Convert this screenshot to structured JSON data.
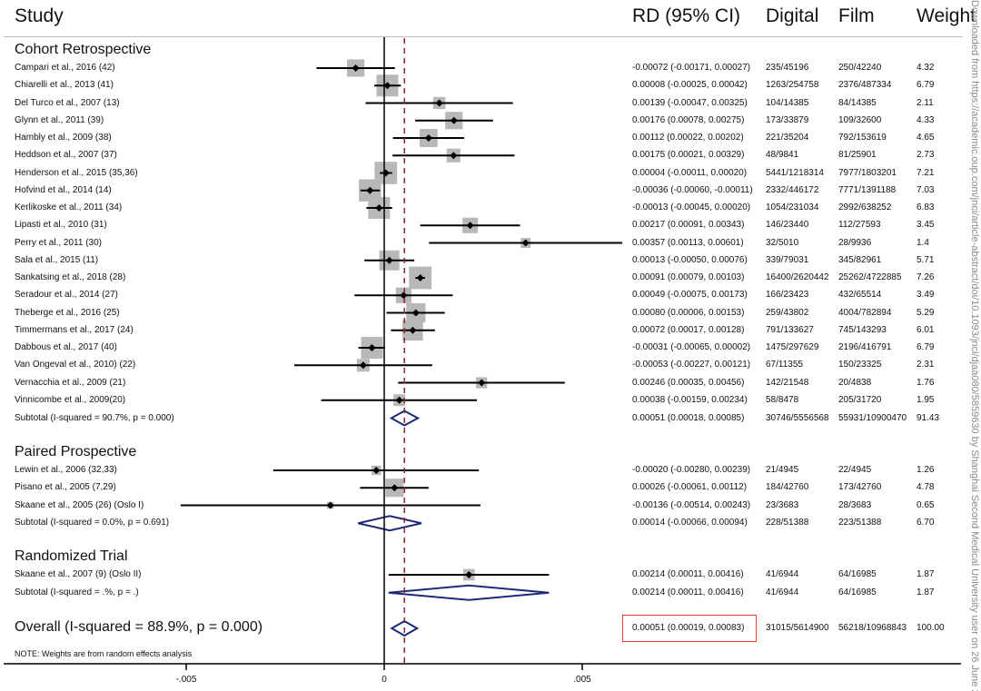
{
  "headers": {
    "study": "Study",
    "rd": "RD (95% CI)",
    "digital": "Digital",
    "film": "Film",
    "weight": "Weight"
  },
  "watermark": "Downloaded from https://academic.oup.com/jnci/article-abstract/doi/10.1093/jnci/djaa080/5859630 by Shanghai Second Medical University user on 26 June 2020",
  "note": "NOTE: Weights are from random effects analysis",
  "colors": {
    "box": "#b8b8b8",
    "diamond": "#1c2a7a",
    "null_line": "#000000",
    "overall_line": "#8b2a2a",
    "highlight": "#e2472b"
  },
  "chart_data": {
    "type": "forest",
    "title": "",
    "xlabel": "",
    "xlim": [
      -0.0051,
      0.0062
    ],
    "xticks": [
      -0.005,
      0,
      0.005
    ],
    "xtick_labels": [
      "-.005",
      "0",
      ".005"
    ],
    "null_value": 0,
    "overall_effect_line": 0.00051,
    "groups": [
      {
        "name": "Cohort Retrospective",
        "studies": [
          {
            "label": "Campari et al., 2016 (42)",
            "rd": -0.00072,
            "lo": -0.00171,
            "hi": 0.00027,
            "text": "-0.00072 (-0.00171, 0.00027)",
            "digital": "235/45196",
            "film": "250/42240",
            "weight": 4.32
          },
          {
            "label": "Chiarelli et al., 2013 (41)",
            "rd": 8e-05,
            "lo": -0.00025,
            "hi": 0.00042,
            "text": "0.00008 (-0.00025, 0.00042)",
            "digital": "1263/254758",
            "film": "2376/487334",
            "weight": 6.79
          },
          {
            "label": "Del Turco et al., 2007 (13)",
            "rd": 0.00139,
            "lo": -0.00047,
            "hi": 0.00325,
            "text": "0.00139 (-0.00047, 0.00325)",
            "digital": "104/14385",
            "film": "84/14385",
            "weight": 2.11
          },
          {
            "label": "Glynn et al., 2011 (39)",
            "rd": 0.00176,
            "lo": 0.00078,
            "hi": 0.00275,
            "text": "0.00176 (0.00078, 0.00275)",
            "digital": "173/33879",
            "film": "109/32600",
            "weight": 4.33
          },
          {
            "label": "Hambly et al., 2009 (38)",
            "rd": 0.00112,
            "lo": 0.00022,
            "hi": 0.00202,
            "text": "0.00112 (0.00022, 0.00202)",
            "digital": "221/35204",
            "film": "792/153619",
            "weight": 4.65
          },
          {
            "label": "Heddson et al., 2007 (37)",
            "rd": 0.00175,
            "lo": 0.00021,
            "hi": 0.00329,
            "text": "0.00175 (0.00021, 0.00329)",
            "digital": "48/9841",
            "film": "81/25901",
            "weight": 2.73
          },
          {
            "label": "Henderson et al., 2015 (35,36)",
            "rd": 4e-05,
            "lo": -0.00011,
            "hi": 0.0002,
            "text": "0.00004 (-0.00011, 0.00020)",
            "digital": "5441/1218314",
            "film": "7977/1803201",
            "weight": 7.21
          },
          {
            "label": "Hofvind et al., 2014 (14)",
            "rd": -0.00036,
            "lo": -0.0006,
            "hi": -0.00011,
            "text": "-0.00036 (-0.00060, -0.00011)",
            "digital": "2332/446172",
            "film": "7771/1391188",
            "weight": 7.03
          },
          {
            "label": "Kerlikoske et al., 2011 (34)",
            "rd": -0.00013,
            "lo": -0.00045,
            "hi": 0.0002,
            "text": "-0.00013 (-0.00045, 0.00020)",
            "digital": "1054/231034",
            "film": "2992/638252",
            "weight": 6.83
          },
          {
            "label": "Lipasti et al., 2010 (31)",
            "rd": 0.00217,
            "lo": 0.00091,
            "hi": 0.00343,
            "text": "0.00217 (0.00091, 0.00343)",
            "digital": "146/23440",
            "film": "112/27593",
            "weight": 3.45
          },
          {
            "label": "Perry et al., 2011 (30)",
            "rd": 0.00357,
            "lo": 0.00113,
            "hi": 0.00601,
            "text": "0.00357 (0.00113, 0.00601)",
            "digital": "32/5010",
            "film": "28/9936",
            "weight": 1.4
          },
          {
            "label": "Sala et al., 2015 (11)",
            "rd": 0.00013,
            "lo": -0.0005,
            "hi": 0.00076,
            "text": "0.00013 (-0.00050, 0.00076)",
            "digital": "339/79031",
            "film": "345/82961",
            "weight": 5.71
          },
          {
            "label": "Sankatsing et al., 2018 (28)",
            "rd": 0.00091,
            "lo": 0.00079,
            "hi": 0.00103,
            "text": "0.00091 (0.00079, 0.00103)",
            "digital": "16400/2620442",
            "film": "25262/4722885",
            "weight": 7.26
          },
          {
            "label": "Seradour et al., 2014 (27)",
            "rd": 0.00049,
            "lo": -0.00075,
            "hi": 0.00173,
            "text": "0.00049 (-0.00075, 0.00173)",
            "digital": "166/23423",
            "film": "432/65514",
            "weight": 3.49
          },
          {
            "label": "Theberge et al., 2016 (25)",
            "rd": 0.0008,
            "lo": 6e-05,
            "hi": 0.00153,
            "text": "0.00080 (0.00006, 0.00153)",
            "digital": "259/43802",
            "film": "4004/782894",
            "weight": 5.29
          },
          {
            "label": "Timmermans et al., 2017 (24)",
            "rd": 0.00072,
            "lo": 0.00017,
            "hi": 0.00128,
            "text": "0.00072 (0.00017, 0.00128)",
            "digital": "791/133627",
            "film": "745/143293",
            "weight": 6.01
          },
          {
            "label": "Dabbous et al., 2017 (40)",
            "rd": -0.00031,
            "lo": -0.00065,
            "hi": 2e-05,
            "text": "-0.00031 (-0.00065, 0.00002)",
            "digital": "1475/297629",
            "film": "2196/416791",
            "weight": 6.79
          },
          {
            "label": "Van Ongeval et al., 2010) (22)",
            "rd": -0.00053,
            "lo": -0.00227,
            "hi": 0.00121,
            "text": "-0.00053 (-0.00227, 0.00121)",
            "digital": "67/11355",
            "film": "150/23325",
            "weight": 2.31
          },
          {
            "label": "Vernacchia et al., 2009 (21)",
            "rd": 0.00246,
            "lo": 0.00035,
            "hi": 0.00456,
            "text": "0.00246 (0.00035, 0.00456)",
            "digital": "142/21548",
            "film": "20/4838",
            "weight": 1.76
          },
          {
            "label": "Vinnicombe et al., 2009(20)",
            "rd": 0.00038,
            "lo": -0.00159,
            "hi": 0.00234,
            "text": "0.00038 (-0.00159, 0.00234)",
            "digital": "58/8478",
            "film": "205/31720",
            "weight": 1.95
          }
        ],
        "subtotal": {
          "label": "Subtotal  (I-squared = 90.7%, p = 0.000)",
          "rd": 0.00051,
          "lo": 0.00018,
          "hi": 0.00085,
          "text": "0.00051 (0.00018, 0.00085)",
          "digital": "30746/5556568",
          "film": "55931/10900470",
          "weight": "91.43"
        }
      },
      {
        "name": "Paired Prospective",
        "studies": [
          {
            "label": "Lewin et al., 2006 (32,33)",
            "rd": -0.0002,
            "lo": -0.0028,
            "hi": 0.00239,
            "text": "-0.00020 (-0.00280, 0.00239)",
            "digital": "21/4945",
            "film": "22/4945",
            "weight": 1.26
          },
          {
            "label": "Pisano et al., 2005 (7,29)",
            "rd": 0.00026,
            "lo": -0.00061,
            "hi": 0.00112,
            "text": "0.00026 (-0.00061, 0.00112)",
            "digital": "184/42760",
            "film": "173/42760",
            "weight": 4.78
          },
          {
            "label": "Skaane et al., 2005 (26) (Oslo I)",
            "rd": -0.00136,
            "lo": -0.00514,
            "hi": 0.00243,
            "text": "-0.00136 (-0.00514, 0.00243)",
            "digital": "23/3683",
            "film": "28/3683",
            "weight": 0.65
          }
        ],
        "subtotal": {
          "label": "Subtotal  (I-squared = 0.0%, p = 0.691)",
          "rd": 0.00014,
          "lo": -0.00066,
          "hi": 0.00094,
          "text": "0.00014 (-0.00066, 0.00094)",
          "digital": "228/51388",
          "film": "223/51388",
          "weight": "6.70"
        }
      },
      {
        "name": "Randomized Trial",
        "studies": [
          {
            "label": "Skaane et al., 2007 (9) (Oslo II)",
            "rd": 0.00214,
            "lo": 0.00011,
            "hi": 0.00416,
            "text": "0.00214 (0.00011, 0.00416)",
            "digital": "41/6944",
            "film": "64/16985",
            "weight": 1.87
          }
        ],
        "subtotal": {
          "label": "Subtotal  (I-squared = .%, p = .)",
          "rd": 0.00214,
          "lo": 0.00011,
          "hi": 0.00416,
          "text": "0.00214 (0.00011, 0.00416)",
          "digital": "41/6944",
          "film": "64/16985",
          "weight": "1.87"
        }
      }
    ],
    "overall": {
      "label": "Overall  (I-squared = 88.9%, p = 0.000)",
      "rd": 0.00051,
      "lo": 0.00019,
      "hi": 0.00083,
      "text": "0.00051 (0.00019, 0.00083)",
      "digital": "31015/5614900",
      "film": "56218/10968843",
      "weight": "100.00",
      "highlighted": true
    }
  }
}
